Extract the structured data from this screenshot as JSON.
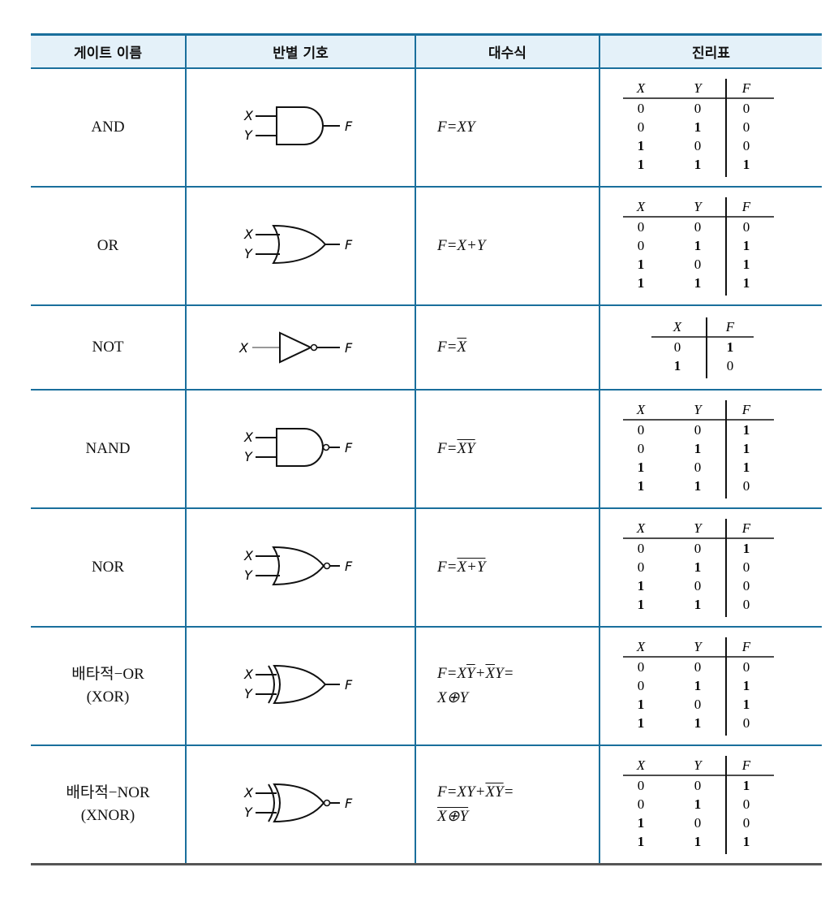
{
  "headers": [
    "게이트 이름",
    "반별 기호",
    "대수식",
    "진리표"
  ],
  "labels": {
    "x": "X",
    "y": "Y",
    "f": "F"
  },
  "gates": [
    {
      "name": "AND",
      "name2": "",
      "expr": "F=XY",
      "tt_headers": [
        "X",
        "Y",
        "F"
      ],
      "rows": [
        [
          "0",
          "0",
          "0"
        ],
        [
          "0",
          "1",
          "0"
        ],
        [
          "1",
          "0",
          "0"
        ],
        [
          "1",
          "1",
          "1"
        ]
      ]
    },
    {
      "name": "OR",
      "name2": "",
      "expr": "F=X+Y",
      "tt_headers": [
        "X",
        "Y",
        "F"
      ],
      "rows": [
        [
          "0",
          "0",
          "0"
        ],
        [
          "0",
          "1",
          "1"
        ],
        [
          "1",
          "0",
          "1"
        ],
        [
          "1",
          "1",
          "1"
        ]
      ]
    },
    {
      "name": "NOT",
      "name2": "",
      "expr": "F=X̄",
      "tt_headers": [
        "X",
        "F"
      ],
      "rows": [
        [
          "0",
          "1"
        ],
        [
          "1",
          "0"
        ]
      ]
    },
    {
      "name": "NAND",
      "name2": "",
      "expr": "F=XY (overlined)",
      "tt_headers": [
        "X",
        "Y",
        "F"
      ],
      "rows": [
        [
          "0",
          "0",
          "1"
        ],
        [
          "0",
          "1",
          "1"
        ],
        [
          "1",
          "0",
          "1"
        ],
        [
          "1",
          "1",
          "0"
        ]
      ]
    },
    {
      "name": "NOR",
      "name2": "",
      "expr": "F=X+Y (overlined)",
      "tt_headers": [
        "X",
        "Y",
        "F"
      ],
      "rows": [
        [
          "0",
          "0",
          "1"
        ],
        [
          "0",
          "1",
          "0"
        ],
        [
          "1",
          "0",
          "0"
        ],
        [
          "1",
          "1",
          "0"
        ]
      ]
    },
    {
      "name": "배타적−OR",
      "name2": "(XOR)",
      "expr": "F=XȲ+X̄Y=",
      "expr2": "X⊕Y",
      "tt_headers": [
        "X",
        "Y",
        "F"
      ],
      "rows": [
        [
          "0",
          "0",
          "0"
        ],
        [
          "0",
          "1",
          "1"
        ],
        [
          "1",
          "0",
          "1"
        ],
        [
          "1",
          "1",
          "0"
        ]
      ]
    },
    {
      "name": "배타적−NOR",
      "name2": "(XNOR)",
      "expr": "F=XY+X̄Ȳ=",
      "expr2": "X⊕Y (overlined)",
      "tt_headers": [
        "X",
        "Y",
        "F"
      ],
      "rows": [
        [
          "0",
          "0",
          "1"
        ],
        [
          "0",
          "1",
          "0"
        ],
        [
          "1",
          "0",
          "0"
        ],
        [
          "1",
          "1",
          "1"
        ]
      ]
    }
  ],
  "colors": {
    "rule": "#1a6f9c",
    "header_bg": "#e4f1f9"
  }
}
